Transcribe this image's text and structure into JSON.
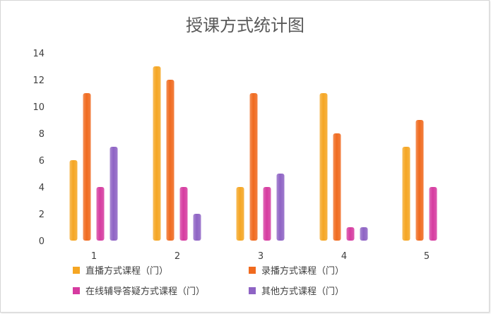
{
  "chart_data": {
    "type": "bar",
    "title": "授课方式统计图",
    "categories": [
      "1",
      "2",
      "3",
      "4",
      "5"
    ],
    "y_ticks": [
      "0",
      "2",
      "4",
      "6",
      "8",
      "10",
      "12",
      "14"
    ],
    "ylim": [
      0,
      14
    ],
    "series": [
      {
        "name": "直播方式课程（门）",
        "color": "#f5a623",
        "values": [
          6,
          13,
          4,
          11,
          7
        ]
      },
      {
        "name": "录播方式课程（门）",
        "color": "#f06a1f",
        "values": [
          11,
          12,
          11,
          8,
          9
        ]
      },
      {
        "name": "在线辅导答疑方式课程（门）",
        "color": "#d63ba0",
        "values": [
          4,
          4,
          4,
          1,
          4
        ]
      },
      {
        "name": "其他方式课程（门）",
        "color": "#8e63c4",
        "values": [
          7,
          2,
          5,
          1,
          null
        ]
      }
    ],
    "legend_position": "bottom",
    "grid": false
  }
}
